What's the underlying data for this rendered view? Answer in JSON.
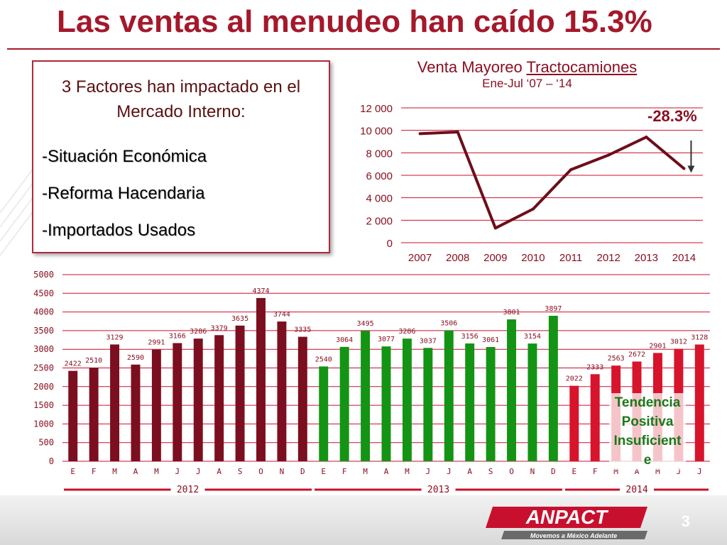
{
  "title": "Las ventas al menudeo han caído 15.3%",
  "factors": {
    "heading": "3 Factores han impactado en el Mercado Interno:",
    "items": [
      "-Situación Económica",
      "-Reforma Hacendaria",
      "-Importados Usados"
    ]
  },
  "line_chart_titles": {
    "prefix": "Venta Mayoreo ",
    "underlined": "Tractocamiones",
    "subtitle": "Ene-Jul  ‘07 – ‘14"
  },
  "annotation_pct": "-28.3%",
  "trend_label": "Tendencia Positiva Insuficient e",
  "page_number": "3",
  "logo": {
    "name": "ANPACT",
    "tagline": "Movemos a México Adelante"
  },
  "colors": {
    "title": "#a5182b",
    "line": "#6e0d1b",
    "bars_2012": "#7b0f1f",
    "bars_2013": "#149414",
    "bars_2014": "#d7142b",
    "grid": "#c8102e"
  },
  "chart_data": [
    {
      "type": "line",
      "title": "Venta Mayoreo Tractocamiones",
      "subtitle": "Ene-Jul ‘07 – ‘14",
      "x": [
        "2007",
        "2008",
        "2009",
        "2010",
        "2011",
        "2012",
        "2013",
        "2014"
      ],
      "series": [
        {
          "values": [
            9700,
            9850,
            1300,
            3000,
            6500,
            7800,
            9400,
            6600
          ]
        }
      ],
      "ylim": [
        0,
        12000
      ],
      "yticks": [
        "0",
        "2 000",
        "4 000",
        "6 000",
        "8 000",
        "10 000",
        "12 000"
      ],
      "annotation": "-28.3%",
      "grid": true
    },
    {
      "type": "bar",
      "categories": [
        "E",
        "F",
        "M",
        "A",
        "M",
        "J",
        "J",
        "A",
        "S",
        "O",
        "N",
        "D",
        "E",
        "F",
        "M",
        "A",
        "M",
        "J",
        "J",
        "A",
        "S",
        "O",
        "N",
        "D",
        "E",
        "F",
        "M",
        "A",
        "M",
        "J",
        "J"
      ],
      "values": [
        2422,
        2510,
        3129,
        2590,
        2991,
        3166,
        3286,
        3379,
        3635,
        4374,
        3744,
        3335,
        2540,
        3064,
        3495,
        3077,
        3286,
        3037,
        3506,
        3156,
        3061,
        3801,
        3154,
        3897,
        2022,
        2333,
        2563,
        2672,
        2901,
        3012,
        3128
      ],
      "years": [
        {
          "label": "2012",
          "count": 12
        },
        {
          "label": "2013",
          "count": 12
        },
        {
          "label": "2014",
          "count": 7
        }
      ],
      "ylim": [
        0,
        5000
      ],
      "yticks": [
        "0",
        "500",
        "1000",
        "1500",
        "2000",
        "2500",
        "3000",
        "3500",
        "4000",
        "4500",
        "5000"
      ],
      "grid": true
    }
  ]
}
